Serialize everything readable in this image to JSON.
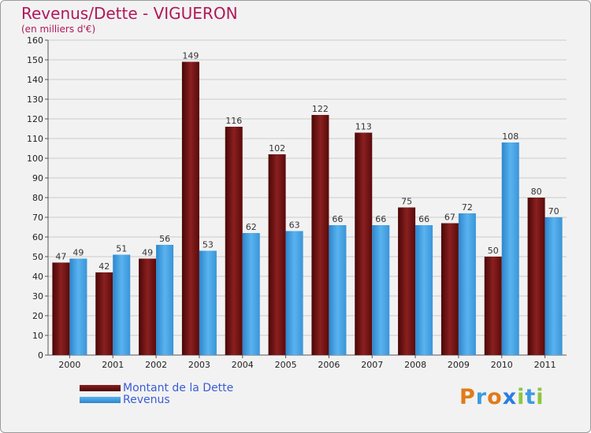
{
  "title": "Revenus/Dette - VIGUERON",
  "subtitle": "(en milliers d'€)",
  "legend": [
    {
      "label": "Montant de la Dette",
      "color": "#6b0a0a"
    },
    {
      "label": "Revenus",
      "color": "#3d9be0"
    }
  ],
  "logo": {
    "text": "Proxiti",
    "letters": [
      "P",
      "r",
      "o",
      "x",
      "i",
      "t",
      "i"
    ],
    "colors": [
      "#e07b1a",
      "#3d9be0",
      "#e07b1a",
      "#2a7de0",
      "#8dc63f",
      "#3d9be0",
      "#8dc63f"
    ]
  },
  "chart_data": {
    "type": "bar",
    "title": "Revenus/Dette - VIGUERON",
    "ylabel": "(en milliers d'€)",
    "xlabel": "",
    "ylim": [
      0,
      160
    ],
    "ytick_step": 10,
    "grid": true,
    "categories": [
      "2000",
      "2001",
      "2002",
      "2003",
      "2004",
      "2005",
      "2006",
      "2007",
      "2008",
      "2009",
      "2010",
      "2011"
    ],
    "series": [
      {
        "name": "Montant de la Dette",
        "color": "#7a1414",
        "values": [
          47,
          42,
          49,
          149,
          116,
          102,
          122,
          113,
          75,
          67,
          50,
          80
        ]
      },
      {
        "name": "Revenus",
        "color": "#4aa3e6",
        "values": [
          49,
          51,
          56,
          53,
          62,
          63,
          66,
          66,
          66,
          72,
          108,
          70
        ]
      }
    ]
  }
}
